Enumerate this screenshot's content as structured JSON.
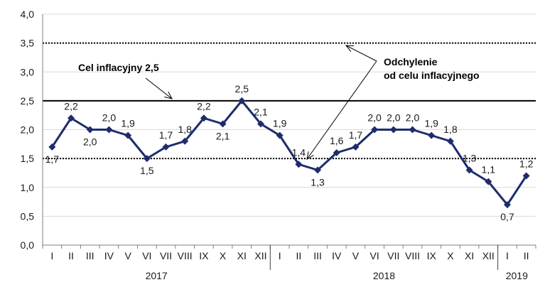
{
  "chart_data": {
    "type": "line",
    "title": "",
    "xlabel": "",
    "ylabel": "",
    "ylim": [
      0,
      4
    ],
    "yticks": [
      "0,0",
      "0,5",
      "1,0",
      "1,5",
      "2,0",
      "2,5",
      "3,0",
      "3,5",
      "4,0"
    ],
    "grid": true,
    "categories": [
      "I",
      "II",
      "III",
      "IV",
      "V",
      "VI",
      "VII",
      "VIII",
      "IX",
      "X",
      "XI",
      "XII",
      "I",
      "II",
      "III",
      "IV",
      "V",
      "VI",
      "VII",
      "VIII",
      "IX",
      "X",
      "XI",
      "XII",
      "I",
      "II"
    ],
    "years": [
      {
        "label": "2017",
        "start": 0,
        "count": 12
      },
      {
        "label": "2018",
        "start": 12,
        "count": 12
      },
      {
        "label": "2019",
        "start": 24,
        "count": 2
      }
    ],
    "values": [
      1.7,
      2.2,
      2.0,
      2.0,
      1.9,
      1.5,
      1.7,
      1.8,
      2.2,
      2.1,
      2.5,
      2.1,
      1.9,
      1.4,
      1.3,
      1.6,
      1.7,
      2.0,
      2.0,
      2.0,
      1.9,
      1.8,
      1.3,
      1.1,
      0.7,
      1.2
    ],
    "data_labels": [
      "1,7",
      "2,2",
      "2,0",
      "2,0",
      "1,9",
      "1,5",
      "1,7",
      "1,8",
      "2,2",
      "2,1",
      "2,5",
      "2,1",
      "1,9",
      "1,4",
      "1,3",
      "1,6",
      "1,7",
      "2,0",
      "2,0",
      "2,0",
      "1,9",
      "1,8",
      "1,3",
      "1,1",
      "0,7",
      "1,2"
    ],
    "reference_lines": [
      {
        "value": 2.5,
        "style": "solid"
      },
      {
        "value": 3.5,
        "style": "dotted"
      },
      {
        "value": 1.5,
        "style": "dotted"
      }
    ],
    "annotations": {
      "target_label": "Cel inflacyjny  2,5",
      "deviation_line1": "Odchylenie",
      "deviation_line2": "od celu inflacyjnego"
    },
    "colors": {
      "series": "#1f2c6b",
      "grid": "#d9d9d9",
      "reference": "#000000"
    }
  }
}
